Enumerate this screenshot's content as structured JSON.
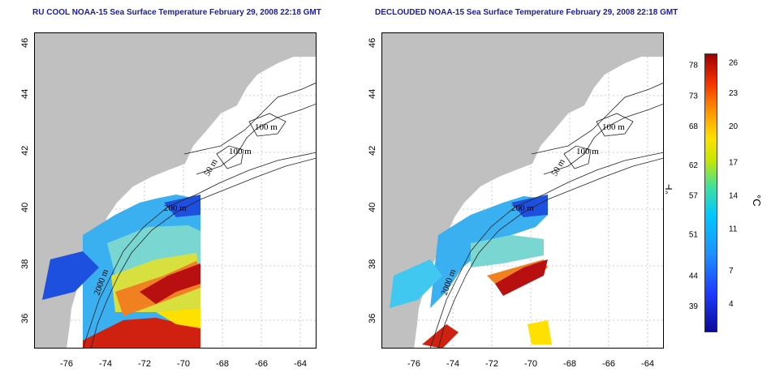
{
  "titles": {
    "left": "RU COOL NOAA-15 Sea Surface Temperature February 29, 2008 22:18 GMT",
    "right": "DECLOUDED NOAA-15 Sea Surface Temperature February 29, 2008 22:18 GMT"
  },
  "axes": {
    "lon_ticks": [
      "-76",
      "-74",
      "-72",
      "-70",
      "-68",
      "-66",
      "-64"
    ],
    "lat_ticks": [
      "36",
      "38",
      "40",
      "42",
      "44",
      "46"
    ]
  },
  "contours": {
    "c100a": "100 m",
    "c100b": "100 m",
    "c50": "50 m",
    "c200": "200 m",
    "c2000": "2000 m"
  },
  "colorbar": {
    "fahrenheit_label": "°F",
    "celsius_label": "°C",
    "f_ticks": [
      "78",
      "73",
      "68",
      "62",
      "57",
      "51",
      "44",
      "39"
    ],
    "c_ticks": [
      "26",
      "23",
      "20",
      "17",
      "14",
      "11",
      "7",
      "4"
    ]
  },
  "colors": {
    "title": "#1a1aa8",
    "land": "#c0c0c0",
    "contour": "#222222"
  }
}
